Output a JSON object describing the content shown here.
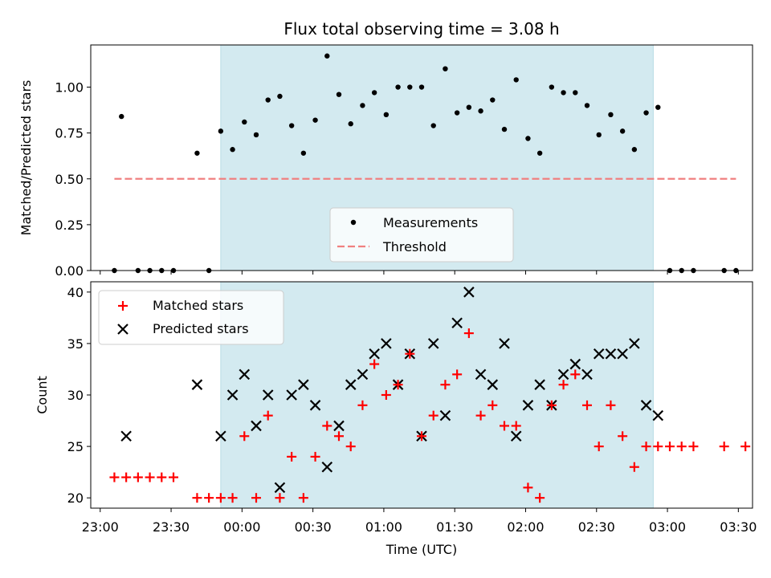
{
  "chart_data": {
    "title": "Flux total observing time = 3.08 h",
    "type": "scatter",
    "x_unit": "time (UTC), minutes after 23:00",
    "xlim": [
      "22:56",
      "03:36"
    ],
    "x_ticks": [
      "23:00",
      "23:30",
      "00:00",
      "00:30",
      "01:00",
      "01:30",
      "02:00",
      "02:30",
      "03:00",
      "03:30"
    ],
    "xlabel": "Time (UTC)",
    "shade_span": [
      "23:51",
      "02:54"
    ],
    "colors": {
      "shade": "#d3eaf0",
      "threshold": "#f08080",
      "matched": "#ff0000",
      "predicted": "#000000"
    },
    "top": {
      "ylabel": "Matched/Predicted stars",
      "ylim": [
        0,
        1.23
      ],
      "y_ticks": [
        "0.00",
        "0.25",
        "0.50",
        "0.75",
        "1.00"
      ],
      "threshold": 0.5,
      "threshold_range": [
        "23:06",
        "03:29"
      ],
      "legend": {
        "position": "lower center",
        "entries": [
          "Measurements",
          "Threshold"
        ]
      },
      "measurements": [
        [
          "23:06",
          0
        ],
        [
          "23:09",
          0.84
        ],
        [
          "23:16",
          0
        ],
        [
          "23:21",
          0
        ],
        [
          "23:26",
          0
        ],
        [
          "23:31",
          0
        ],
        [
          "23:41",
          0.64
        ],
        [
          "23:46",
          0
        ],
        [
          "23:51",
          0.76
        ],
        [
          "23:56",
          0.66
        ],
        [
          "00:01",
          0.81
        ],
        [
          "00:06",
          0.74
        ],
        [
          "00:11",
          0.93
        ],
        [
          "00:16",
          0.95
        ],
        [
          "00:21",
          0.79
        ],
        [
          "00:26",
          0.64
        ],
        [
          "00:31",
          0.82
        ],
        [
          "00:36",
          1.17
        ],
        [
          "00:41",
          0.96
        ],
        [
          "00:46",
          0.8
        ],
        [
          "00:51",
          0.9
        ],
        [
          "00:56",
          0.97
        ],
        [
          "01:01",
          0.85
        ],
        [
          "01:06",
          1.0
        ],
        [
          "01:11",
          1.0
        ],
        [
          "01:16",
          1.0
        ],
        [
          "01:21",
          0.79
        ],
        [
          "01:26",
          1.1
        ],
        [
          "01:31",
          0.86
        ],
        [
          "01:36",
          0.89
        ],
        [
          "01:41",
          0.87
        ],
        [
          "01:46",
          0.93
        ],
        [
          "01:51",
          0.77
        ],
        [
          "01:56",
          1.04
        ],
        [
          "02:01",
          0.72
        ],
        [
          "02:06",
          0.64
        ],
        [
          "02:11",
          1.0
        ],
        [
          "02:16",
          0.97
        ],
        [
          "02:21",
          0.97
        ],
        [
          "02:26",
          0.9
        ],
        [
          "02:31",
          0.74
        ],
        [
          "02:36",
          0.85
        ],
        [
          "02:41",
          0.76
        ],
        [
          "02:46",
          0.66
        ],
        [
          "02:51",
          0.86
        ],
        [
          "02:56",
          0.89
        ],
        [
          "03:01",
          0
        ],
        [
          "03:06",
          0
        ],
        [
          "03:11",
          0
        ],
        [
          "03:24",
          0
        ],
        [
          "03:29",
          0
        ]
      ]
    },
    "bottom": {
      "ylabel": "Count",
      "ylim": [
        19,
        41
      ],
      "y_ticks": [
        "20",
        "25",
        "30",
        "35",
        "40"
      ],
      "legend": {
        "position": "upper left",
        "entries": [
          "Matched stars",
          "Predicted stars"
        ]
      },
      "matched": [
        [
          "23:06",
          22
        ],
        [
          "23:11",
          22
        ],
        [
          "23:16",
          22
        ],
        [
          "23:21",
          22
        ],
        [
          "23:26",
          22
        ],
        [
          "23:31",
          22
        ],
        [
          "23:41",
          20
        ],
        [
          "23:46",
          20
        ],
        [
          "23:51",
          20
        ],
        [
          "23:56",
          20
        ],
        [
          "00:01",
          26
        ],
        [
          "00:06",
          20
        ],
        [
          "00:11",
          28
        ],
        [
          "00:16",
          20
        ],
        [
          "00:21",
          24
        ],
        [
          "00:26",
          20
        ],
        [
          "00:31",
          24
        ],
        [
          "00:36",
          27
        ],
        [
          "00:41",
          26
        ],
        [
          "00:46",
          25
        ],
        [
          "00:51",
          29
        ],
        [
          "00:56",
          33
        ],
        [
          "01:01",
          30
        ],
        [
          "01:06",
          31
        ],
        [
          "01:11",
          34
        ],
        [
          "01:16",
          26
        ],
        [
          "01:21",
          28
        ],
        [
          "01:26",
          31
        ],
        [
          "01:31",
          32
        ],
        [
          "01:36",
          36
        ],
        [
          "01:41",
          28
        ],
        [
          "01:46",
          29
        ],
        [
          "01:51",
          27
        ],
        [
          "01:56",
          27
        ],
        [
          "02:01",
          21
        ],
        [
          "02:06",
          20
        ],
        [
          "02:11",
          29
        ],
        [
          "02:16",
          31
        ],
        [
          "02:21",
          32
        ],
        [
          "02:26",
          29
        ],
        [
          "02:31",
          25
        ],
        [
          "02:36",
          29
        ],
        [
          "02:41",
          26
        ],
        [
          "02:46",
          23
        ],
        [
          "02:51",
          25
        ],
        [
          "02:56",
          25
        ],
        [
          "03:01",
          25
        ],
        [
          "03:06",
          25
        ],
        [
          "03:11",
          25
        ],
        [
          "03:24",
          25
        ],
        [
          "03:33",
          25
        ]
      ],
      "predicted": [
        [
          "23:11",
          26
        ],
        [
          "23:41",
          31
        ],
        [
          "23:51",
          26
        ],
        [
          "23:56",
          30
        ],
        [
          "00:01",
          32
        ],
        [
          "00:06",
          27
        ],
        [
          "00:11",
          30
        ],
        [
          "00:16",
          21
        ],
        [
          "00:21",
          30
        ],
        [
          "00:26",
          31
        ],
        [
          "00:31",
          29
        ],
        [
          "00:36",
          23
        ],
        [
          "00:41",
          27
        ],
        [
          "00:46",
          31
        ],
        [
          "00:51",
          32
        ],
        [
          "00:56",
          34
        ],
        [
          "01:01",
          35
        ],
        [
          "01:06",
          31
        ],
        [
          "01:11",
          34
        ],
        [
          "01:16",
          26
        ],
        [
          "01:21",
          35
        ],
        [
          "01:26",
          28
        ],
        [
          "01:31",
          37
        ],
        [
          "01:36",
          40
        ],
        [
          "01:41",
          32
        ],
        [
          "01:46",
          31
        ],
        [
          "01:51",
          35
        ],
        [
          "01:56",
          26
        ],
        [
          "02:01",
          29
        ],
        [
          "02:06",
          31
        ],
        [
          "02:11",
          29
        ],
        [
          "02:16",
          32
        ],
        [
          "02:21",
          33
        ],
        [
          "02:26",
          32
        ],
        [
          "02:31",
          34
        ],
        [
          "02:36",
          34
        ],
        [
          "02:41",
          34
        ],
        [
          "02:46",
          35
        ],
        [
          "02:51",
          29
        ],
        [
          "02:56",
          28
        ]
      ]
    }
  }
}
